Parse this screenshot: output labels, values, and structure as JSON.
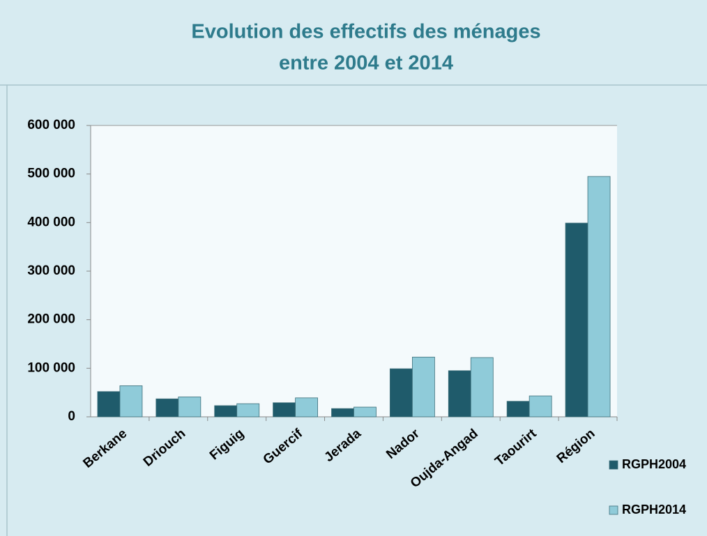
{
  "chart_data": {
    "type": "bar",
    "title": [
      "Evolution  des effectifs des ménages",
      "entre 2004 et 2014"
    ],
    "categories": [
      "Berkane",
      "Driouch",
      "Figuig",
      "Guercif",
      "Jerada",
      "Nador",
      "Oujda-Angad",
      "Taourirt",
      "Région"
    ],
    "series": [
      {
        "name": "RGPH2004",
        "color": "#1f5b6b",
        "values": [
          52000,
          37000,
          23000,
          29000,
          17000,
          99000,
          95000,
          32000,
          399000
        ]
      },
      {
        "name": "RGPH2014",
        "color": "#8fcbd9",
        "values": [
          64000,
          41000,
          27000,
          39000,
          20000,
          123000,
          122000,
          43000,
          495000
        ]
      }
    ],
    "ylim": [
      0,
      600000
    ],
    "yticks": [
      0,
      {
        "value": 100000,
        "label": "100 000"
      },
      {
        "value": 200000,
        "label": "200 000"
      },
      {
        "value": 300000,
        "label": "300 000"
      },
      {
        "value": 400000,
        "label": "400 000"
      },
      {
        "value": 500000,
        "label": "500 000"
      },
      {
        "value": 600000,
        "label": "600 000"
      }
    ],
    "grid": false
  }
}
